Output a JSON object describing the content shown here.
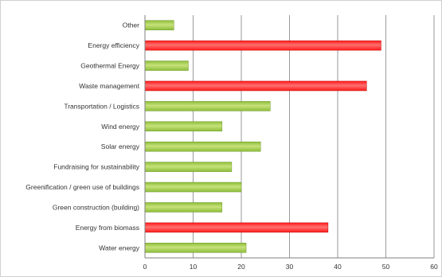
{
  "chart_data": {
    "type": "bar",
    "orientation": "horizontal",
    "categories": [
      "Other",
      "Energy efficiency",
      "Geothermal Energy",
      "Waste management",
      "Transportation / Logistics",
      "Wind energy",
      "Solar energy",
      "Fundraising for sustainability",
      "Greenification / green use of buildings",
      "Green construction (building)",
      "Energy from biomass",
      "Water energy"
    ],
    "values": [
      6,
      49,
      9,
      46,
      26,
      16,
      24,
      18,
      20,
      16,
      38,
      21
    ],
    "highlighted": [
      false,
      true,
      false,
      true,
      false,
      false,
      false,
      false,
      false,
      false,
      true,
      false
    ],
    "xlim": [
      0,
      60
    ],
    "xticks": [
      "0",
      "10",
      "20",
      "30",
      "40",
      "50",
      "60"
    ],
    "grid": true,
    "colors": {
      "normal": "#8dbd3a",
      "normal_light": "#c6e27a",
      "highlight": "#ff1a1a",
      "highlight_light": "#ff7070",
      "grid": "#9a9a9a"
    }
  }
}
